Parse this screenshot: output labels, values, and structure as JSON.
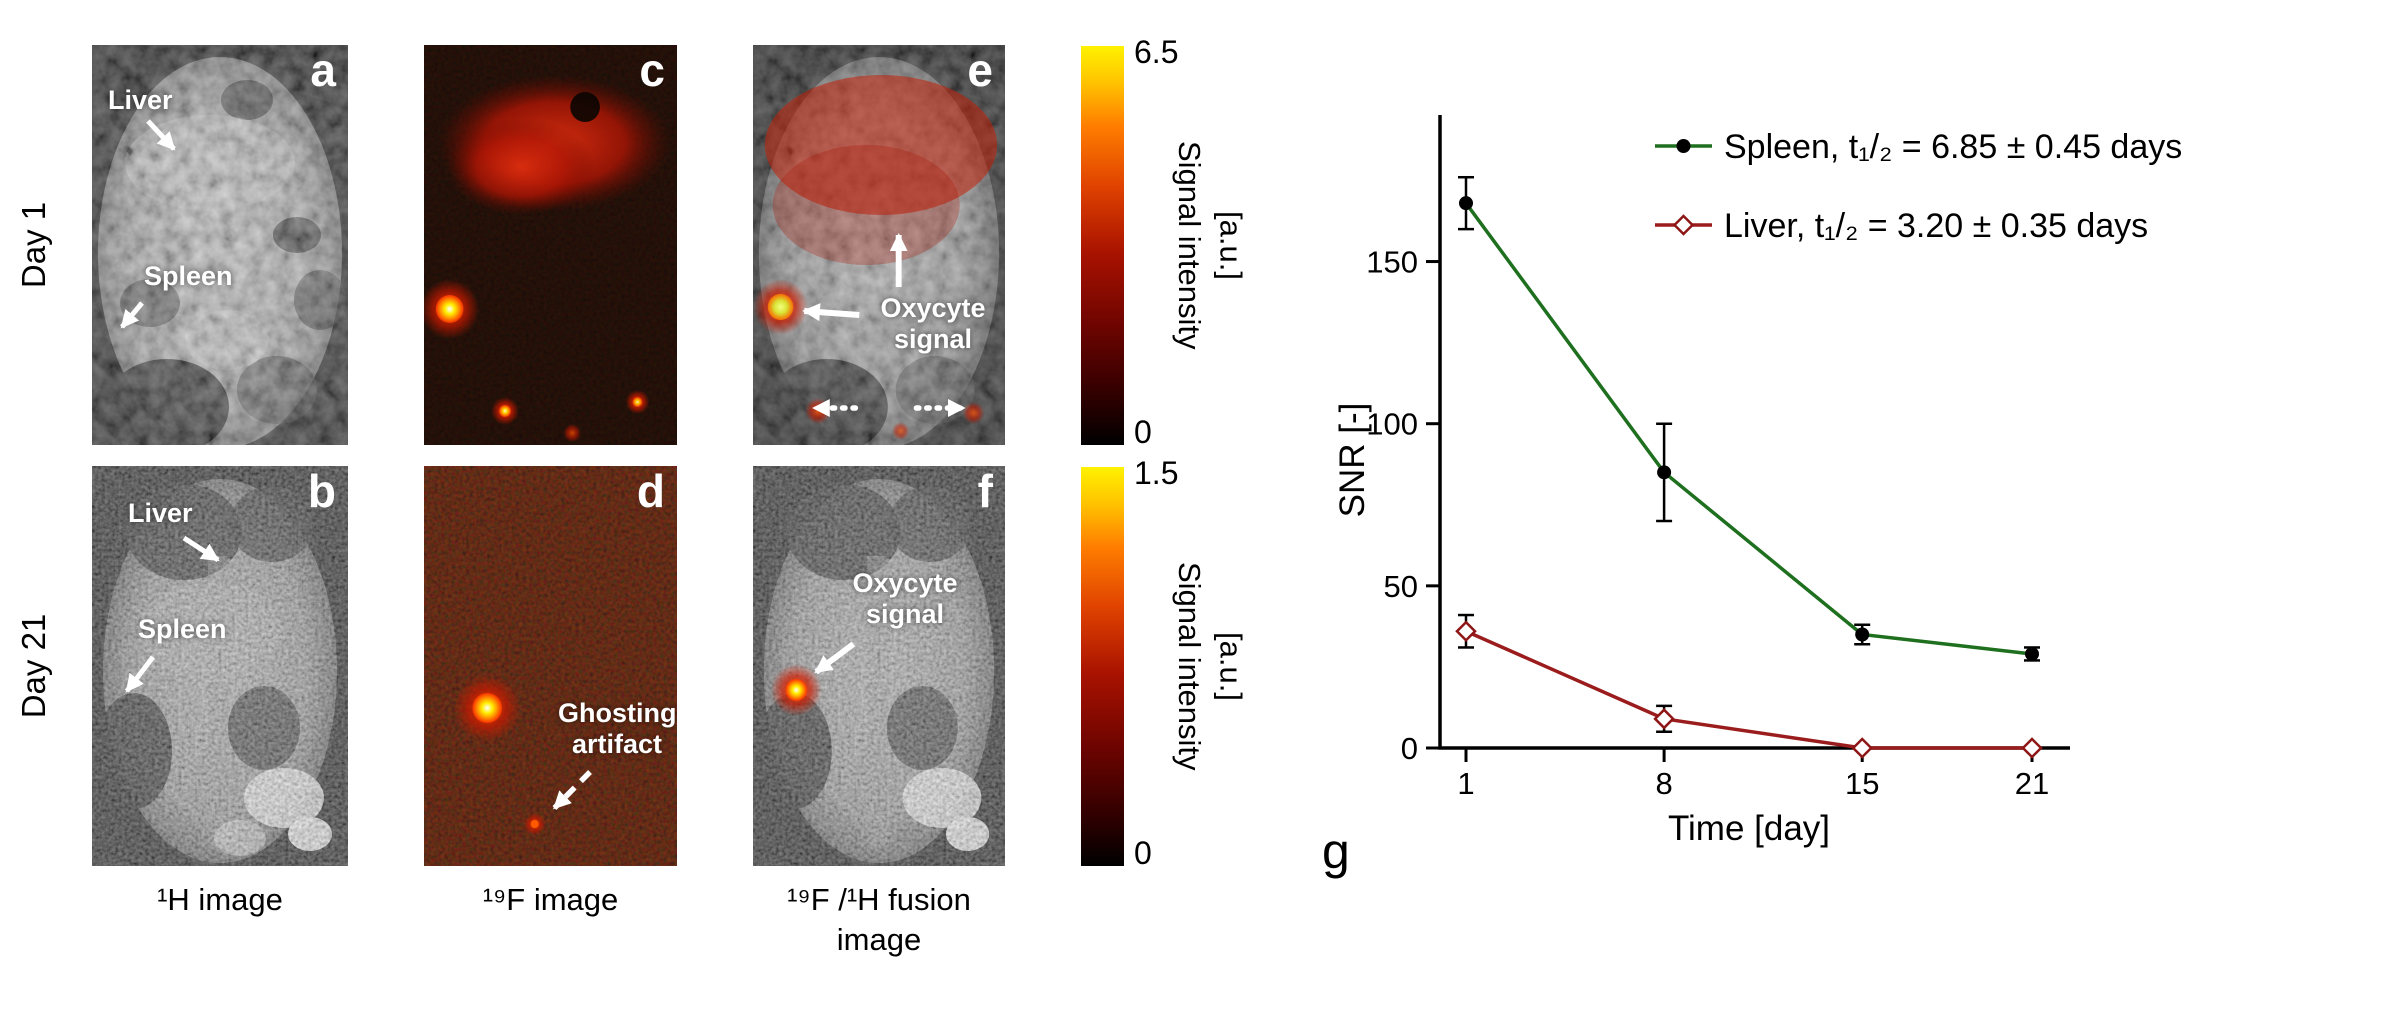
{
  "figure": {
    "row_labels": {
      "day1": "Day 1",
      "day21": "Day 21"
    },
    "panels": {
      "a": {
        "letter": "a",
        "liver_label": "Liver",
        "spleen_label": "Spleen"
      },
      "b": {
        "letter": "b",
        "liver_label": "Liver",
        "spleen_label": "Spleen"
      },
      "c": {
        "letter": "c"
      },
      "d": {
        "letter": "d",
        "annotation_line1": "Ghosting",
        "annotation_line2": "artifact"
      },
      "e": {
        "letter": "e",
        "annotation_line1": "Oxycyte",
        "annotation_line2": "signal"
      },
      "f": {
        "letter": "f",
        "annotation_line1": "Oxycyte",
        "annotation_line2": "signal"
      }
    },
    "colorbars": {
      "day1": {
        "max": "6.5",
        "min": "0",
        "label_line1": "Signal intensity",
        "label_line2": "[a.u.]"
      },
      "day21": {
        "max": "1.5",
        "min": "0",
        "label_line1": "Signal intensity",
        "label_line2": "[a.u.]"
      }
    },
    "column_captions": {
      "col1": "¹H image",
      "col2": "¹⁹F image",
      "col3_line1": "¹⁹F /¹H fusion",
      "col3_line2": "image"
    }
  },
  "chart_data": {
    "type": "line",
    "panel_label": "g",
    "xlabel": "Time [day]",
    "ylabel": "SNR [-]",
    "x": [
      1,
      8,
      15,
      21
    ],
    "xticks": [
      1,
      8,
      15,
      21
    ],
    "yticks": [
      0,
      50,
      100,
      150
    ],
    "xlim": [
      0,
      22.5
    ],
    "ylim": [
      0,
      195
    ],
    "grid": false,
    "legend_position": "top-right",
    "series": [
      {
        "name": "Spleen",
        "legend_label": "Spleen, t₁/₂ = 6.85 ± 0.45 days",
        "line_color": "#1e6f1e",
        "marker": "filled-circle",
        "marker_color": "#000000",
        "values": [
          168,
          85,
          35,
          29
        ],
        "errors": [
          8,
          15,
          3,
          2
        ]
      },
      {
        "name": "Liver",
        "legend_label": "Liver, t₁/₂ = 3.20 ± 0.35 days",
        "line_color": "#9b1c1c",
        "marker": "open-diamond",
        "marker_color": "#8e1616",
        "values": [
          36,
          9,
          0,
          0
        ],
        "errors": [
          5,
          4,
          0,
          0
        ]
      }
    ]
  }
}
